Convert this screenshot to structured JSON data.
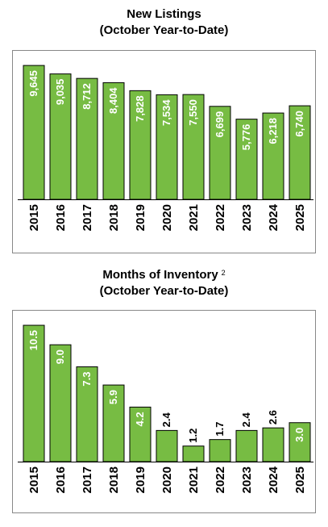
{
  "chart_data": [
    {
      "type": "bar",
      "title_line1": "New Listings",
      "title_line2": "(October Year-to-Date)",
      "footnote": "",
      "categories": [
        "2015",
        "2016",
        "2017",
        "2018",
        "2019",
        "2020",
        "2021",
        "2022",
        "2023",
        "2024",
        "2025"
      ],
      "values": [
        9645,
        9035,
        8712,
        8404,
        7828,
        7534,
        7550,
        6699,
        5776,
        6218,
        6740
      ],
      "labels": [
        "9,645",
        "9,035",
        "8,712",
        "8,404",
        "7,828",
        "7,534",
        "7,550",
        "6,699",
        "5,776",
        "6,218",
        "6,740"
      ],
      "ylim": [
        0,
        10000
      ],
      "grid": false,
      "bar_color": "#77bc43"
    },
    {
      "type": "bar",
      "title_line1": "Months of Inventory",
      "title_line2": "(October Year-to-Date)",
      "footnote": "2",
      "categories": [
        "2015",
        "2016",
        "2017",
        "2018",
        "2019",
        "2020",
        "2021",
        "2022",
        "2023",
        "2024",
        "2025"
      ],
      "values": [
        10.5,
        9.0,
        7.3,
        5.9,
        4.2,
        2.4,
        1.2,
        1.7,
        2.4,
        2.6,
        3.0
      ],
      "labels": [
        "10.5",
        "9.0",
        "7.3",
        "5.9",
        "4.2",
        "2.4",
        "1.2",
        "1.7",
        "2.4",
        "2.6",
        "3.0"
      ],
      "ylim": [
        0,
        11
      ],
      "grid": false,
      "bar_color": "#77bc43"
    }
  ]
}
